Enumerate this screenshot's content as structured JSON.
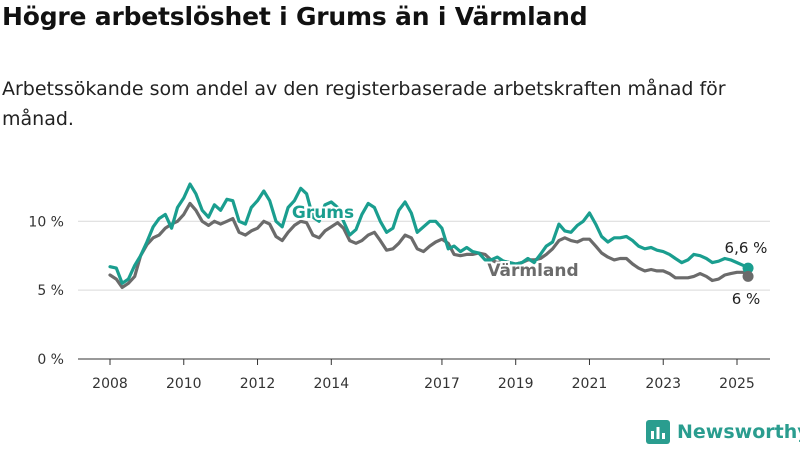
{
  "title": "Högre arbetslöshet i Grums än i Värmland",
  "subtitle": "Arbetssökande som andel av den registerbaserade arbetskraften månad för månad.",
  "brand": "Newsworthy",
  "colors": {
    "grums": "#1a9e8f",
    "varmland": "#6b6b6b",
    "brand": "#2a9d8f"
  },
  "chart_data": {
    "type": "line",
    "ylim": [
      0,
      13
    ],
    "xlim": [
      2007.6,
      2025.75
    ],
    "y_ticks": [
      {
        "value": 0,
        "label": "0 %"
      },
      {
        "value": 5,
        "label": "5 %"
      },
      {
        "value": 10,
        "label": "10 %"
      }
    ],
    "x_ticks": [
      {
        "value": 2008,
        "label": "2008"
      },
      {
        "value": 2010,
        "label": "2010"
      },
      {
        "value": 2012,
        "label": "2012"
      },
      {
        "value": 2014,
        "label": "2014"
      },
      {
        "value": 2017,
        "label": "2017"
      },
      {
        "value": 2019,
        "label": "2019"
      },
      {
        "value": 2021,
        "label": "2021"
      },
      {
        "value": 2023,
        "label": "2023"
      },
      {
        "value": 2025,
        "label": "2025"
      }
    ],
    "grid": true,
    "series": [
      {
        "name": "Grums",
        "color": "#1a9e8f",
        "end_label": "6,6 %",
        "points": [
          [
            2008.0,
            6.7
          ],
          [
            2008.17,
            6.6
          ],
          [
            2008.33,
            5.5
          ],
          [
            2008.5,
            5.8
          ],
          [
            2008.67,
            6.8
          ],
          [
            2008.83,
            7.5
          ],
          [
            2009.0,
            8.5
          ],
          [
            2009.17,
            9.6
          ],
          [
            2009.33,
            10.2
          ],
          [
            2009.5,
            10.5
          ],
          [
            2009.67,
            9.5
          ],
          [
            2009.83,
            11.0
          ],
          [
            2010.0,
            11.7
          ],
          [
            2010.17,
            12.7
          ],
          [
            2010.33,
            12.0
          ],
          [
            2010.5,
            10.8
          ],
          [
            2010.67,
            10.3
          ],
          [
            2010.83,
            11.2
          ],
          [
            2011.0,
            10.8
          ],
          [
            2011.17,
            11.6
          ],
          [
            2011.33,
            11.5
          ],
          [
            2011.5,
            10.0
          ],
          [
            2011.67,
            9.8
          ],
          [
            2011.83,
            11.0
          ],
          [
            2012.0,
            11.5
          ],
          [
            2012.17,
            12.2
          ],
          [
            2012.33,
            11.5
          ],
          [
            2012.5,
            10.0
          ],
          [
            2012.67,
            9.6
          ],
          [
            2012.83,
            11.0
          ],
          [
            2013.0,
            11.5
          ],
          [
            2013.17,
            12.4
          ],
          [
            2013.33,
            12.0
          ],
          [
            2013.5,
            10.3
          ],
          [
            2013.67,
            10.0
          ],
          [
            2013.83,
            11.2
          ],
          [
            2014.0,
            11.4
          ],
          [
            2014.17,
            11.0
          ],
          [
            2014.33,
            10.0
          ],
          [
            2014.5,
            9.0
          ],
          [
            2014.67,
            9.4
          ],
          [
            2014.83,
            10.5
          ],
          [
            2015.0,
            11.3
          ],
          [
            2015.17,
            11.0
          ],
          [
            2015.33,
            10.0
          ],
          [
            2015.5,
            9.2
          ],
          [
            2015.67,
            9.5
          ],
          [
            2015.83,
            10.8
          ],
          [
            2016.0,
            11.4
          ],
          [
            2016.17,
            10.6
          ],
          [
            2016.33,
            9.2
          ],
          [
            2016.5,
            9.6
          ],
          [
            2016.67,
            10.0
          ],
          [
            2016.83,
            10.0
          ],
          [
            2017.0,
            9.5
          ],
          [
            2017.17,
            8.0
          ],
          [
            2017.33,
            8.2
          ],
          [
            2017.5,
            7.8
          ],
          [
            2017.67,
            8.1
          ],
          [
            2017.83,
            7.8
          ],
          [
            2018.0,
            7.7
          ],
          [
            2018.17,
            7.2
          ],
          [
            2018.33,
            7.2
          ],
          [
            2018.5,
            7.4
          ],
          [
            2018.67,
            7.1
          ],
          [
            2018.83,
            7.0
          ],
          [
            2019.0,
            6.9
          ],
          [
            2019.17,
            7.0
          ],
          [
            2019.33,
            7.3
          ],
          [
            2019.5,
            7.0
          ],
          [
            2019.67,
            7.6
          ],
          [
            2019.83,
            8.2
          ],
          [
            2020.0,
            8.5
          ],
          [
            2020.17,
            9.8
          ],
          [
            2020.33,
            9.3
          ],
          [
            2020.5,
            9.2
          ],
          [
            2020.67,
            9.7
          ],
          [
            2020.83,
            10.0
          ],
          [
            2021.0,
            10.6
          ],
          [
            2021.17,
            9.8
          ],
          [
            2021.33,
            8.9
          ],
          [
            2021.5,
            8.5
          ],
          [
            2021.67,
            8.8
          ],
          [
            2021.83,
            8.8
          ],
          [
            2022.0,
            8.9
          ],
          [
            2022.17,
            8.6
          ],
          [
            2022.33,
            8.2
          ],
          [
            2022.5,
            8.0
          ],
          [
            2022.67,
            8.1
          ],
          [
            2022.83,
            7.9
          ],
          [
            2023.0,
            7.8
          ],
          [
            2023.17,
            7.6
          ],
          [
            2023.33,
            7.3
          ],
          [
            2023.5,
            7.0
          ],
          [
            2023.67,
            7.2
          ],
          [
            2023.83,
            7.6
          ],
          [
            2024.0,
            7.5
          ],
          [
            2024.17,
            7.3
          ],
          [
            2024.33,
            7.0
          ],
          [
            2024.5,
            7.1
          ],
          [
            2024.67,
            7.3
          ],
          [
            2024.83,
            7.2
          ],
          [
            2025.0,
            7.0
          ],
          [
            2025.17,
            6.8
          ],
          [
            2025.3,
            6.6
          ]
        ]
      },
      {
        "name": "Värmland",
        "color": "#6b6b6b",
        "end_label": "6 %",
        "points": [
          [
            2008.0,
            6.1
          ],
          [
            2008.17,
            5.8
          ],
          [
            2008.33,
            5.2
          ],
          [
            2008.5,
            5.5
          ],
          [
            2008.67,
            6.0
          ],
          [
            2008.83,
            7.5
          ],
          [
            2009.0,
            8.3
          ],
          [
            2009.17,
            8.8
          ],
          [
            2009.33,
            9.0
          ],
          [
            2009.5,
            9.5
          ],
          [
            2009.67,
            9.8
          ],
          [
            2009.83,
            10.0
          ],
          [
            2010.0,
            10.5
          ],
          [
            2010.17,
            11.3
          ],
          [
            2010.33,
            10.8
          ],
          [
            2010.5,
            10.0
          ],
          [
            2010.67,
            9.7
          ],
          [
            2010.83,
            10.0
          ],
          [
            2011.0,
            9.8
          ],
          [
            2011.17,
            10.0
          ],
          [
            2011.33,
            10.2
          ],
          [
            2011.5,
            9.2
          ],
          [
            2011.67,
            9.0
          ],
          [
            2011.83,
            9.3
          ],
          [
            2012.0,
            9.5
          ],
          [
            2012.17,
            10.0
          ],
          [
            2012.33,
            9.8
          ],
          [
            2012.5,
            8.9
          ],
          [
            2012.67,
            8.6
          ],
          [
            2012.83,
            9.2
          ],
          [
            2013.0,
            9.7
          ],
          [
            2013.17,
            10.0
          ],
          [
            2013.33,
            9.9
          ],
          [
            2013.5,
            9.0
          ],
          [
            2013.67,
            8.8
          ],
          [
            2013.83,
            9.3
          ],
          [
            2014.0,
            9.6
          ],
          [
            2014.17,
            9.9
          ],
          [
            2014.33,
            9.5
          ],
          [
            2014.5,
            8.6
          ],
          [
            2014.67,
            8.4
          ],
          [
            2014.83,
            8.6
          ],
          [
            2015.0,
            9.0
          ],
          [
            2015.17,
            9.2
          ],
          [
            2015.33,
            8.6
          ],
          [
            2015.5,
            7.9
          ],
          [
            2015.67,
            8.0
          ],
          [
            2015.83,
            8.4
          ],
          [
            2016.0,
            9.0
          ],
          [
            2016.17,
            8.8
          ],
          [
            2016.33,
            8.0
          ],
          [
            2016.5,
            7.8
          ],
          [
            2016.67,
            8.2
          ],
          [
            2016.83,
            8.5
          ],
          [
            2017.0,
            8.7
          ],
          [
            2017.17,
            8.4
          ],
          [
            2017.33,
            7.6
          ],
          [
            2017.5,
            7.5
          ],
          [
            2017.67,
            7.6
          ],
          [
            2017.83,
            7.6
          ],
          [
            2018.0,
            7.7
          ],
          [
            2018.17,
            7.6
          ],
          [
            2018.33,
            7.2
          ],
          [
            2018.5,
            7.0
          ],
          [
            2018.67,
            7.1
          ],
          [
            2018.83,
            7.0
          ],
          [
            2019.0,
            6.9
          ],
          [
            2019.17,
            7.0
          ],
          [
            2019.33,
            7.2
          ],
          [
            2019.5,
            7.2
          ],
          [
            2019.67,
            7.3
          ],
          [
            2019.83,
            7.6
          ],
          [
            2020.0,
            8.0
          ],
          [
            2020.17,
            8.6
          ],
          [
            2020.33,
            8.8
          ],
          [
            2020.5,
            8.6
          ],
          [
            2020.67,
            8.5
          ],
          [
            2020.83,
            8.7
          ],
          [
            2021.0,
            8.7
          ],
          [
            2021.17,
            8.2
          ],
          [
            2021.33,
            7.7
          ],
          [
            2021.5,
            7.4
          ],
          [
            2021.67,
            7.2
          ],
          [
            2021.83,
            7.3
          ],
          [
            2022.0,
            7.3
          ],
          [
            2022.17,
            6.9
          ],
          [
            2022.33,
            6.6
          ],
          [
            2022.5,
            6.4
          ],
          [
            2022.67,
            6.5
          ],
          [
            2022.83,
            6.4
          ],
          [
            2023.0,
            6.4
          ],
          [
            2023.17,
            6.2
          ],
          [
            2023.33,
            5.9
          ],
          [
            2023.5,
            5.9
          ],
          [
            2023.67,
            5.9
          ],
          [
            2023.83,
            6.0
          ],
          [
            2024.0,
            6.2
          ],
          [
            2024.17,
            6.0
          ],
          [
            2024.33,
            5.7
          ],
          [
            2024.5,
            5.8
          ],
          [
            2024.67,
            6.1
          ],
          [
            2024.83,
            6.2
          ],
          [
            2025.0,
            6.3
          ],
          [
            2025.17,
            6.3
          ],
          [
            2025.3,
            6.0
          ]
        ]
      }
    ]
  }
}
